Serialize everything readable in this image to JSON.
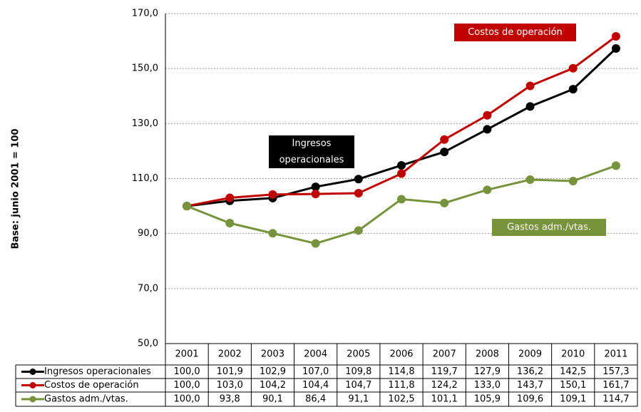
{
  "chart_data": {
    "type": "line",
    "y_label": "Base: junio 2001 = 100",
    "categories": [
      "2001",
      "2002",
      "2003",
      "2004",
      "2005",
      "2006",
      "2007",
      "2008",
      "2009",
      "2010",
      "2011"
    ],
    "series": [
      {
        "name": "Ingresos operacionales",
        "color": "#000000",
        "values": [
          100.0,
          101.9,
          102.9,
          107.0,
          109.8,
          114.8,
          119.7,
          127.9,
          136.2,
          142.5,
          157.3
        ],
        "value_labels": [
          "100,0",
          "101,9",
          "102,9",
          "107,0",
          "109,8",
          "114,8",
          "119,7",
          "127,9",
          "136,2",
          "142,5",
          "157,3"
        ]
      },
      {
        "name": "Costos de operación",
        "color": "#c00000",
        "values": [
          100.0,
          103.0,
          104.2,
          104.4,
          104.7,
          111.8,
          124.2,
          133.0,
          143.7,
          150.1,
          161.7
        ],
        "value_labels": [
          "100,0",
          "103,0",
          "104,2",
          "104,4",
          "104,7",
          "111,8",
          "124,2",
          "133,0",
          "143,7",
          "150,1",
          "161,7"
        ]
      },
      {
        "name": "Gastos adm./vtas.",
        "color": "#77933c",
        "values": [
          100.0,
          93.8,
          90.1,
          86.4,
          91.1,
          102.5,
          101.1,
          105.9,
          109.6,
          109.1,
          114.7
        ],
        "value_labels": [
          "100,0",
          "93,8",
          "90,1",
          "86,4",
          "91,1",
          "102,5",
          "101,1",
          "105,9",
          "109,6",
          "109,1",
          "114,7"
        ]
      }
    ],
    "annotations": [
      {
        "lines": [
          "Costos de operación"
        ],
        "color": "#c00000"
      },
      {
        "lines": [
          "Ingresos",
          "operacionales"
        ],
        "color": "#000000"
      },
      {
        "lines": [
          "Gastos adm./vtas."
        ],
        "color": "#77933c"
      }
    ],
    "ylim": [
      50,
      170
    ],
    "yticks": [
      {
        "value": 50,
        "label": "50,0"
      },
      {
        "value": 70,
        "label": "70,0"
      },
      {
        "value": 90,
        "label": "90,0"
      },
      {
        "value": 110,
        "label": "110,0"
      },
      {
        "value": 130,
        "label": "130,0"
      },
      {
        "value": 150,
        "label": "150,0"
      },
      {
        "value": 170,
        "label": "170,0"
      }
    ],
    "grid": true
  }
}
